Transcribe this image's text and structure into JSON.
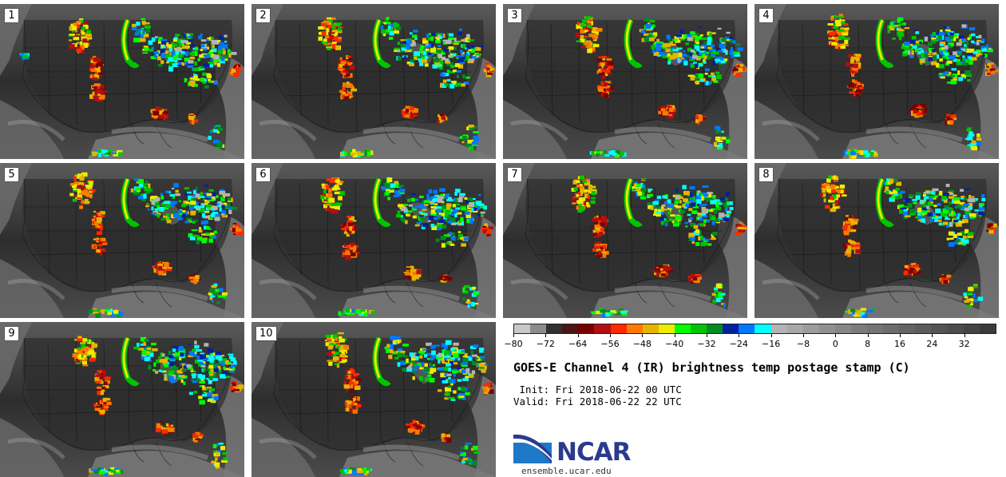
{
  "panels": [
    {
      "label": "1"
    },
    {
      "label": "2"
    },
    {
      "label": "3"
    },
    {
      "label": "4"
    },
    {
      "label": "5"
    },
    {
      "label": "6"
    },
    {
      "label": "7"
    },
    {
      "label": "8"
    },
    {
      "label": "9"
    },
    {
      "label": "10"
    }
  ],
  "colorbar": {
    "colors": [
      "#c8c8c8",
      "#8c8c8c",
      "#303030",
      "#4a1616",
      "#7a0000",
      "#b01010",
      "#ff2a00",
      "#ff7a00",
      "#e6b400",
      "#ecec00",
      "#00ff00",
      "#00c400",
      "#008c20",
      "#0020a0",
      "#0078ff",
      "#00ffff",
      "#b4b4b4",
      "#a8a8a8",
      "#9c9c9c",
      "#909090",
      "#868686",
      "#7c7c7c",
      "#747474",
      "#6c6c6c",
      "#646464",
      "#5c5c5c",
      "#545454",
      "#4c4c4c",
      "#444444",
      "#3a3a3a"
    ],
    "ticks": [
      {
        "value": -80,
        "label": "−80"
      },
      {
        "value": -72,
        "label": "−72"
      },
      {
        "value": -64,
        "label": "−64"
      },
      {
        "value": -56,
        "label": "−56"
      },
      {
        "value": -48,
        "label": "−48"
      },
      {
        "value": -40,
        "label": "−40"
      },
      {
        "value": -32,
        "label": "−32"
      },
      {
        "value": -24,
        "label": "−24"
      },
      {
        "value": -16,
        "label": "−16"
      },
      {
        "value": -8,
        "label": "−8"
      },
      {
        "value": 0,
        "label": "0"
      },
      {
        "value": 8,
        "label": "8"
      },
      {
        "value": 16,
        "label": "16"
      },
      {
        "value": 24,
        "label": "24"
      },
      {
        "value": 32,
        "label": "32"
      }
    ],
    "min": -80,
    "max": 40
  },
  "title": "GOES-E Channel 4 (IR) brightness temp postage stamp (C)",
  "init_line": " Init: Fri 2018-06-22 00 UTC",
  "valid_line": "Valid: Fri 2018-06-22 22 UTC",
  "logo": {
    "text": "NCAR",
    "site": "ensemble.ucar.edu",
    "blue": "#1e78c8",
    "navy": "#2b3a8c"
  }
}
